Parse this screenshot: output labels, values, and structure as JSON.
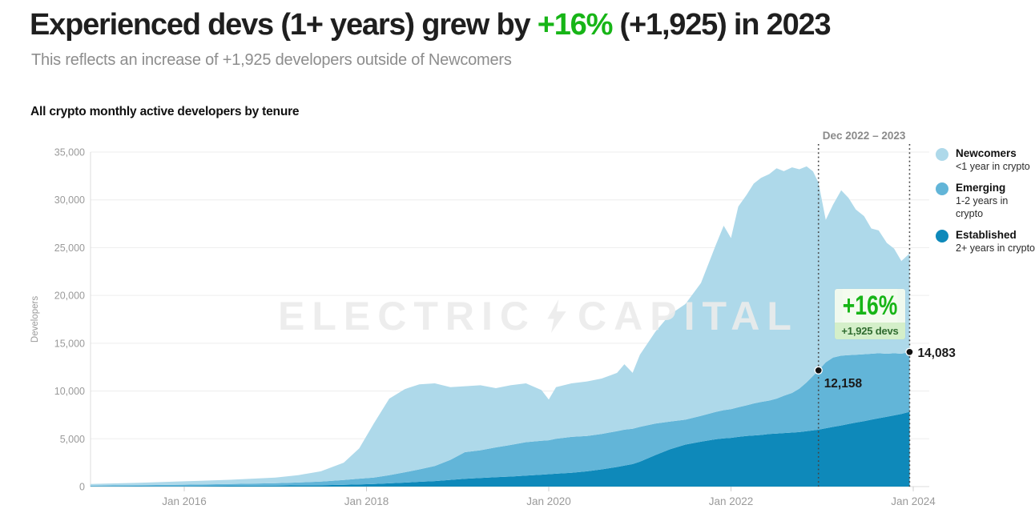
{
  "header": {
    "title_prefix": "Experienced devs (1+ years) grew by ",
    "title_highlight": "+16%",
    "title_suffix": " (+1,925) in 2023",
    "subtitle": "This reflects an increase of +1,925 developers outside of Newcomers"
  },
  "chart": {
    "title": "All crypto monthly active developers by tenure",
    "watermark": {
      "left": "ELECTRIC",
      "right": "CAPITAL",
      "icon": "lightning-bolt-icon"
    },
    "annotation": {
      "range_label": "Dec 2022 – 2023",
      "badge_pct": "+16%",
      "badge_sub": "+1,925 devs",
      "point_start": {
        "t": 2022.96,
        "value": 12158,
        "label": "12,158"
      },
      "point_end": {
        "t": 2023.96,
        "value": 14083,
        "label": "14,083"
      }
    },
    "legend": [
      {
        "name": "Newcomers",
        "sub": "<1 year in crypto",
        "color": "#aed9ea"
      },
      {
        "name": "Emerging",
        "sub": "1-2 years in crypto",
        "color": "#62b5d8"
      },
      {
        "name": "Established",
        "sub": "2+ years in crypto",
        "color": "#0e89ba"
      }
    ]
  },
  "colors": {
    "accent_green": "#17b517",
    "title_text": "#1f1f1f",
    "subtitle_gray": "#8d8d8d",
    "axis_gray": "#9a9a9a",
    "grid": "#ededed",
    "axis_line": "#dcdcdc",
    "dotted_line": "#444444",
    "point_dot": "#111111",
    "newcomers": "#aed9ea",
    "emerging": "#62b5d8",
    "established": "#0e89ba",
    "watermark": "#ececec"
  },
  "chart_data": {
    "type": "area",
    "stacked": true,
    "title": "All crypto monthly active developers by tenure",
    "xlabel": "",
    "ylabel": "Developers",
    "ylim": [
      0,
      35000
    ],
    "x_range": [
      2014.97,
      2023.96
    ],
    "grid": true,
    "legend_position": "right",
    "y_ticks": [
      {
        "v": 0,
        "label": "0"
      },
      {
        "v": 5000,
        "label": "5,000"
      },
      {
        "v": 10000,
        "label": "10,000"
      },
      {
        "v": 15000,
        "label": "15,000"
      },
      {
        "v": 20000,
        "label": "20,000"
      },
      {
        "v": 25000,
        "label": "25,000"
      },
      {
        "v": 30000,
        "label": "30,000"
      },
      {
        "v": 35000,
        "label": "35,000"
      }
    ],
    "x_ticks": [
      {
        "t": 2016,
        "label": "Jan 2016"
      },
      {
        "t": 2018,
        "label": "Jan 2018"
      },
      {
        "t": 2020,
        "label": "Jan 2020"
      },
      {
        "t": 2022,
        "label": "Jan 2022"
      },
      {
        "t": 2024,
        "label": "Jan 2024"
      }
    ],
    "x": [
      2014.97,
      2015.5,
      2016.0,
      2016.5,
      2017.0,
      2017.25,
      2017.5,
      2017.75,
      2017.92,
      2018.08,
      2018.25,
      2018.42,
      2018.58,
      2018.75,
      2018.92,
      2019.08,
      2019.25,
      2019.42,
      2019.58,
      2019.75,
      2019.92,
      2020.0,
      2020.08,
      2020.25,
      2020.42,
      2020.58,
      2020.75,
      2020.83,
      2020.92,
      2021.0,
      2021.17,
      2021.33,
      2021.5,
      2021.67,
      2021.83,
      2021.92,
      2022.0,
      2022.08,
      2022.17,
      2022.25,
      2022.33,
      2022.42,
      2022.5,
      2022.58,
      2022.67,
      2022.75,
      2022.83,
      2022.9,
      2022.96,
      2023.04,
      2023.12,
      2023.21,
      2023.29,
      2023.37,
      2023.46,
      2023.54,
      2023.62,
      2023.71,
      2023.79,
      2023.87,
      2023.96
    ],
    "series": [
      {
        "name": "Established (2+ years in crypto)",
        "color": "#0e89ba",
        "values": [
          30,
          45,
          60,
          80,
          110,
          130,
          150,
          190,
          230,
          280,
          340,
          420,
          500,
          580,
          700,
          820,
          900,
          980,
          1050,
          1150,
          1250,
          1300,
          1350,
          1450,
          1600,
          1800,
          2050,
          2200,
          2350,
          2600,
          3300,
          3900,
          4400,
          4700,
          4950,
          5050,
          5100,
          5200,
          5300,
          5350,
          5400,
          5500,
          5550,
          5600,
          5650,
          5700,
          5800,
          5880,
          5950,
          6100,
          6250,
          6400,
          6550,
          6700,
          6850,
          7000,
          7150,
          7300,
          7450,
          7600,
          7833
        ]
      },
      {
        "name": "Emerging (1-2 years in crypto)",
        "color": "#62b5d8",
        "values": [
          70,
          95,
          140,
          190,
          250,
          300,
          380,
          500,
          600,
          670,
          860,
          1080,
          1300,
          1580,
          2100,
          2780,
          2900,
          3120,
          3300,
          3500,
          3550,
          3550,
          3650,
          3750,
          3700,
          3700,
          3750,
          3750,
          3700,
          3650,
          3300,
          2900,
          2600,
          2700,
          2850,
          2950,
          3000,
          3100,
          3200,
          3350,
          3450,
          3500,
          3650,
          3900,
          4150,
          4550,
          5100,
          5700,
          6208,
          6900,
          7250,
          7300,
          7200,
          7100,
          7000,
          6900,
          6800,
          6600,
          6500,
          6300,
          6250
        ]
      },
      {
        "name": "Newcomers (<1 year in crypto)",
        "color": "#aed9ea",
        "values": [
          170,
          260,
          350,
          440,
          590,
          770,
          1070,
          1810,
          3170,
          5650,
          8000,
          8700,
          8900,
          8640,
          7600,
          6900,
          6800,
          6200,
          6250,
          6150,
          5300,
          4250,
          5400,
          5600,
          5700,
          5800,
          6100,
          6850,
          5850,
          7550,
          9600,
          11200,
          12100,
          13900,
          17400,
          19300,
          17900,
          21000,
          22000,
          23000,
          23450,
          23700,
          24100,
          23500,
          23600,
          22950,
          22600,
          21400,
          19642,
          14900,
          16000,
          17300,
          16450,
          15200,
          14450,
          13100,
          12850,
          11600,
          10950,
          9700,
          10317
        ]
      }
    ],
    "annotations": {
      "vertical_dotted_lines_t": [
        2022.96,
        2023.96
      ],
      "experienced_dec_2022": 12158,
      "experienced_dec_2023": 14083,
      "growth_pct": "+16%",
      "growth_abs": "+1,925 devs"
    }
  }
}
